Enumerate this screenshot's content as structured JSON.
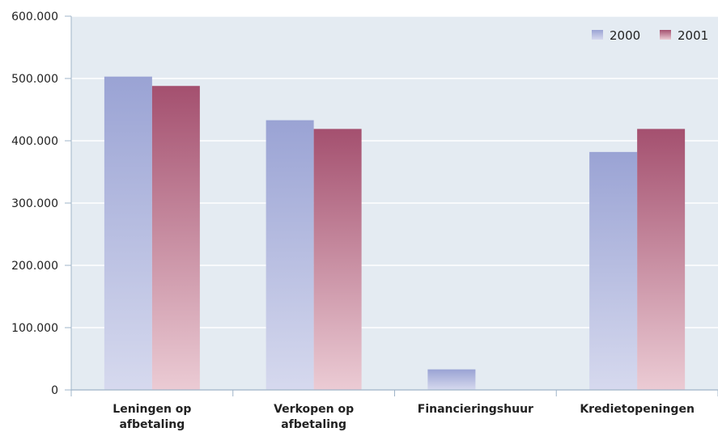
{
  "chart_data": {
    "type": "bar",
    "categories": [
      [
        "Leningen op",
        "afbetaling"
      ],
      [
        "Verkopen op",
        "afbetaling"
      ],
      [
        "Financieringshuur"
      ],
      [
        "Kredietopeningen"
      ]
    ],
    "series": [
      {
        "name": "2000",
        "values": [
          503000,
          433000,
          33000,
          382000
        ]
      },
      {
        "name": "2001",
        "values": [
          488000,
          419000,
          0,
          419000
        ]
      }
    ],
    "ylim": [
      0,
      600000
    ],
    "yticks": [
      "0",
      "100.000",
      "200.000",
      "300.000",
      "400.000",
      "500.000",
      "600.000"
    ],
    "ytick_values": [
      0,
      100000,
      200000,
      300000,
      400000,
      500000,
      600000
    ],
    "grid": true,
    "legend": "top-right",
    "colors": {
      "background": "#e4ebf2",
      "grid": "#ffffff",
      "axis": "#9fb4c8",
      "series_2000_top": "#9aa3d4",
      "series_2000_bottom": "#d6d9ee",
      "series_2001_top": "#a4506f",
      "series_2001_bottom": "#ebcbd4"
    }
  }
}
